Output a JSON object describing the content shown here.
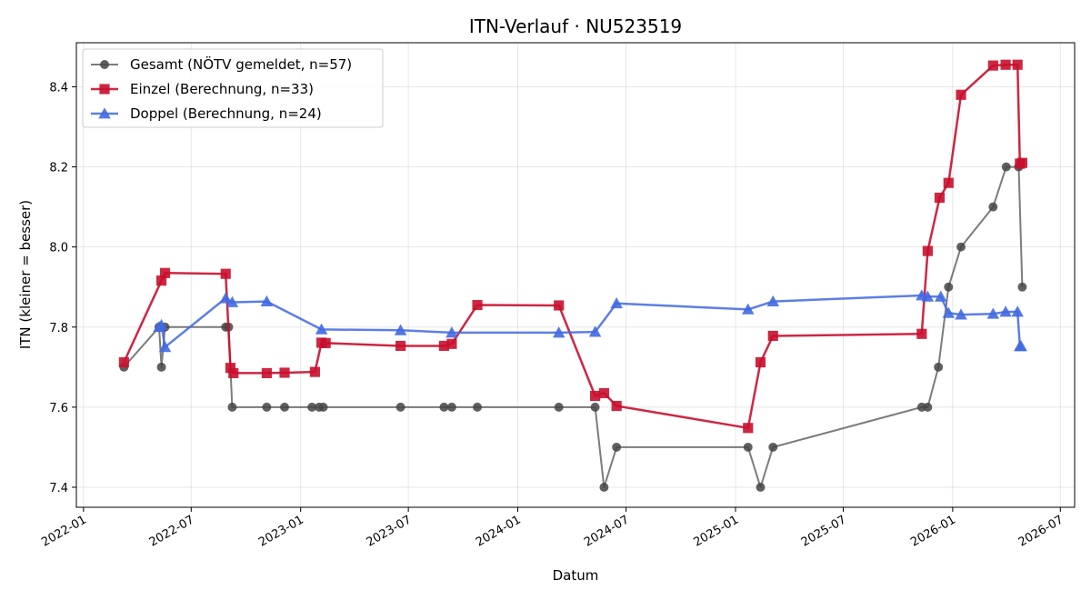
{
  "chart_data": {
    "type": "line",
    "title": "ITN-Verlauf · NU523519",
    "xlabel": "Datum",
    "ylabel": "ITN  (kleiner = besser)",
    "x_type": "date",
    "xlim": [
      "2021-12-20",
      "2026-07-25"
    ],
    "ylim": [
      7.35,
      8.51
    ],
    "x_ticks": [
      "2022-01-01",
      "2022-07-01",
      "2023-01-01",
      "2023-07-01",
      "2024-01-01",
      "2024-07-01",
      "2025-01-01",
      "2025-07-01",
      "2026-01-01",
      "2026-07-01"
    ],
    "x_tick_labels": [
      "2022-01",
      "2022-07",
      "2023-01",
      "2023-07",
      "2024-01",
      "2024-07",
      "2025-01",
      "2025-07",
      "2026-01",
      "2026-07"
    ],
    "y_ticks": [
      7.4,
      7.6,
      7.8,
      8.0,
      8.2,
      8.4
    ],
    "y_tick_labels": [
      "7.4",
      "7.6",
      "7.8",
      "8.0",
      "8.2",
      "8.4"
    ],
    "grid": true,
    "legend_position": "top-left",
    "series": [
      {
        "name": "Gesamt (NÖTV gemeldet, n=57)",
        "color": "#444444",
        "marker": "circle",
        "points": [
          {
            "x": "2022-03-10",
            "y": 7.7
          },
          {
            "x": "2022-05-08",
            "y": 7.8
          },
          {
            "x": "2022-05-12",
            "y": 7.7
          },
          {
            "x": "2022-05-18",
            "y": 7.8
          },
          {
            "x": "2022-08-28",
            "y": 7.8
          },
          {
            "x": "2022-09-02",
            "y": 7.8
          },
          {
            "x": "2022-09-08",
            "y": 7.6
          },
          {
            "x": "2022-11-05",
            "y": 7.6
          },
          {
            "x": "2022-12-05",
            "y": 7.6
          },
          {
            "x": "2023-01-20",
            "y": 7.6
          },
          {
            "x": "2023-02-01",
            "y": 7.6
          },
          {
            "x": "2023-02-08",
            "y": 7.6
          },
          {
            "x": "2023-06-18",
            "y": 7.6
          },
          {
            "x": "2023-08-30",
            "y": 7.6
          },
          {
            "x": "2023-09-12",
            "y": 7.6
          },
          {
            "x": "2023-10-25",
            "y": 7.6
          },
          {
            "x": "2024-03-10",
            "y": 7.6
          },
          {
            "x": "2024-05-10",
            "y": 7.6
          },
          {
            "x": "2024-05-25",
            "y": 7.4
          },
          {
            "x": "2024-06-15",
            "y": 7.5
          },
          {
            "x": "2025-01-22",
            "y": 7.5
          },
          {
            "x": "2025-02-12",
            "y": 7.4
          },
          {
            "x": "2025-03-05",
            "y": 7.5
          },
          {
            "x": "2025-11-10",
            "y": 7.6
          },
          {
            "x": "2025-11-20",
            "y": 7.6
          },
          {
            "x": "2025-12-08",
            "y": 7.7
          },
          {
            "x": "2025-12-25",
            "y": 7.9
          },
          {
            "x": "2026-01-15",
            "y": 8.0
          },
          {
            "x": "2026-03-10",
            "y": 8.1
          },
          {
            "x": "2026-04-01",
            "y": 8.2
          },
          {
            "x": "2026-04-22",
            "y": 8.2
          },
          {
            "x": "2026-04-28",
            "y": 7.9
          }
        ]
      },
      {
        "name": "Einzel (Berechnung, n=33)",
        "color": "#c8102e",
        "marker": "square",
        "points": [
          {
            "x": "2022-03-10",
            "y": 7.712
          },
          {
            "x": "2022-05-12",
            "y": 7.916
          },
          {
            "x": "2022-05-18",
            "y": 7.935
          },
          {
            "x": "2022-08-28",
            "y": 7.933
          },
          {
            "x": "2022-09-05",
            "y": 7.698
          },
          {
            "x": "2022-09-10",
            "y": 7.685
          },
          {
            "x": "2022-11-05",
            "y": 7.685
          },
          {
            "x": "2022-12-05",
            "y": 7.686
          },
          {
            "x": "2023-01-25",
            "y": 7.688
          },
          {
            "x": "2023-02-05",
            "y": 7.761
          },
          {
            "x": "2023-02-12",
            "y": 7.76
          },
          {
            "x": "2023-06-18",
            "y": 7.753
          },
          {
            "x": "2023-08-30",
            "y": 7.753
          },
          {
            "x": "2023-09-12",
            "y": 7.758
          },
          {
            "x": "2023-10-25",
            "y": 7.855
          },
          {
            "x": "2024-03-10",
            "y": 7.854
          },
          {
            "x": "2024-05-10",
            "y": 7.628
          },
          {
            "x": "2024-05-25",
            "y": 7.635
          },
          {
            "x": "2024-06-15",
            "y": 7.603
          },
          {
            "x": "2025-01-22",
            "y": 7.548
          },
          {
            "x": "2025-02-12",
            "y": 7.712
          },
          {
            "x": "2025-03-05",
            "y": 7.778
          },
          {
            "x": "2025-11-10",
            "y": 7.783
          },
          {
            "x": "2025-11-20",
            "y": 7.99
          },
          {
            "x": "2025-12-10",
            "y": 8.123
          },
          {
            "x": "2025-12-25",
            "y": 8.16
          },
          {
            "x": "2026-01-15",
            "y": 8.38
          },
          {
            "x": "2026-03-10",
            "y": 8.453
          },
          {
            "x": "2026-03-31",
            "y": 8.455
          },
          {
            "x": "2026-04-20",
            "y": 8.455
          },
          {
            "x": "2026-04-24",
            "y": 8.208
          },
          {
            "x": "2026-04-28",
            "y": 8.21
          }
        ]
      },
      {
        "name": "Doppel (Berechnung, n=24)",
        "color": "#4169e1",
        "marker": "triangle",
        "points": [
          {
            "x": "2022-05-08",
            "y": 7.8
          },
          {
            "x": "2022-05-12",
            "y": 7.805
          },
          {
            "x": "2022-05-18",
            "y": 7.75
          },
          {
            "x": "2022-08-28",
            "y": 7.872
          },
          {
            "x": "2022-09-08",
            "y": 7.862
          },
          {
            "x": "2022-11-05",
            "y": 7.864
          },
          {
            "x": "2023-02-05",
            "y": 7.794
          },
          {
            "x": "2023-06-18",
            "y": 7.792
          },
          {
            "x": "2023-09-12",
            "y": 7.786
          },
          {
            "x": "2024-03-10",
            "y": 7.786
          },
          {
            "x": "2024-05-10",
            "y": 7.788
          },
          {
            "x": "2024-06-15",
            "y": 7.859
          },
          {
            "x": "2025-01-22",
            "y": 7.844
          },
          {
            "x": "2025-03-05",
            "y": 7.864
          },
          {
            "x": "2025-11-10",
            "y": 7.879
          },
          {
            "x": "2025-11-20",
            "y": 7.876
          },
          {
            "x": "2025-12-12",
            "y": 7.876
          },
          {
            "x": "2025-12-25",
            "y": 7.835
          },
          {
            "x": "2026-01-15",
            "y": 7.831
          },
          {
            "x": "2026-03-10",
            "y": 7.833
          },
          {
            "x": "2026-03-31",
            "y": 7.838
          },
          {
            "x": "2026-04-20",
            "y": 7.838
          },
          {
            "x": "2026-04-24",
            "y": 7.752
          },
          {
            "x": "2026-04-26",
            "y": 7.752
          }
        ]
      }
    ]
  }
}
